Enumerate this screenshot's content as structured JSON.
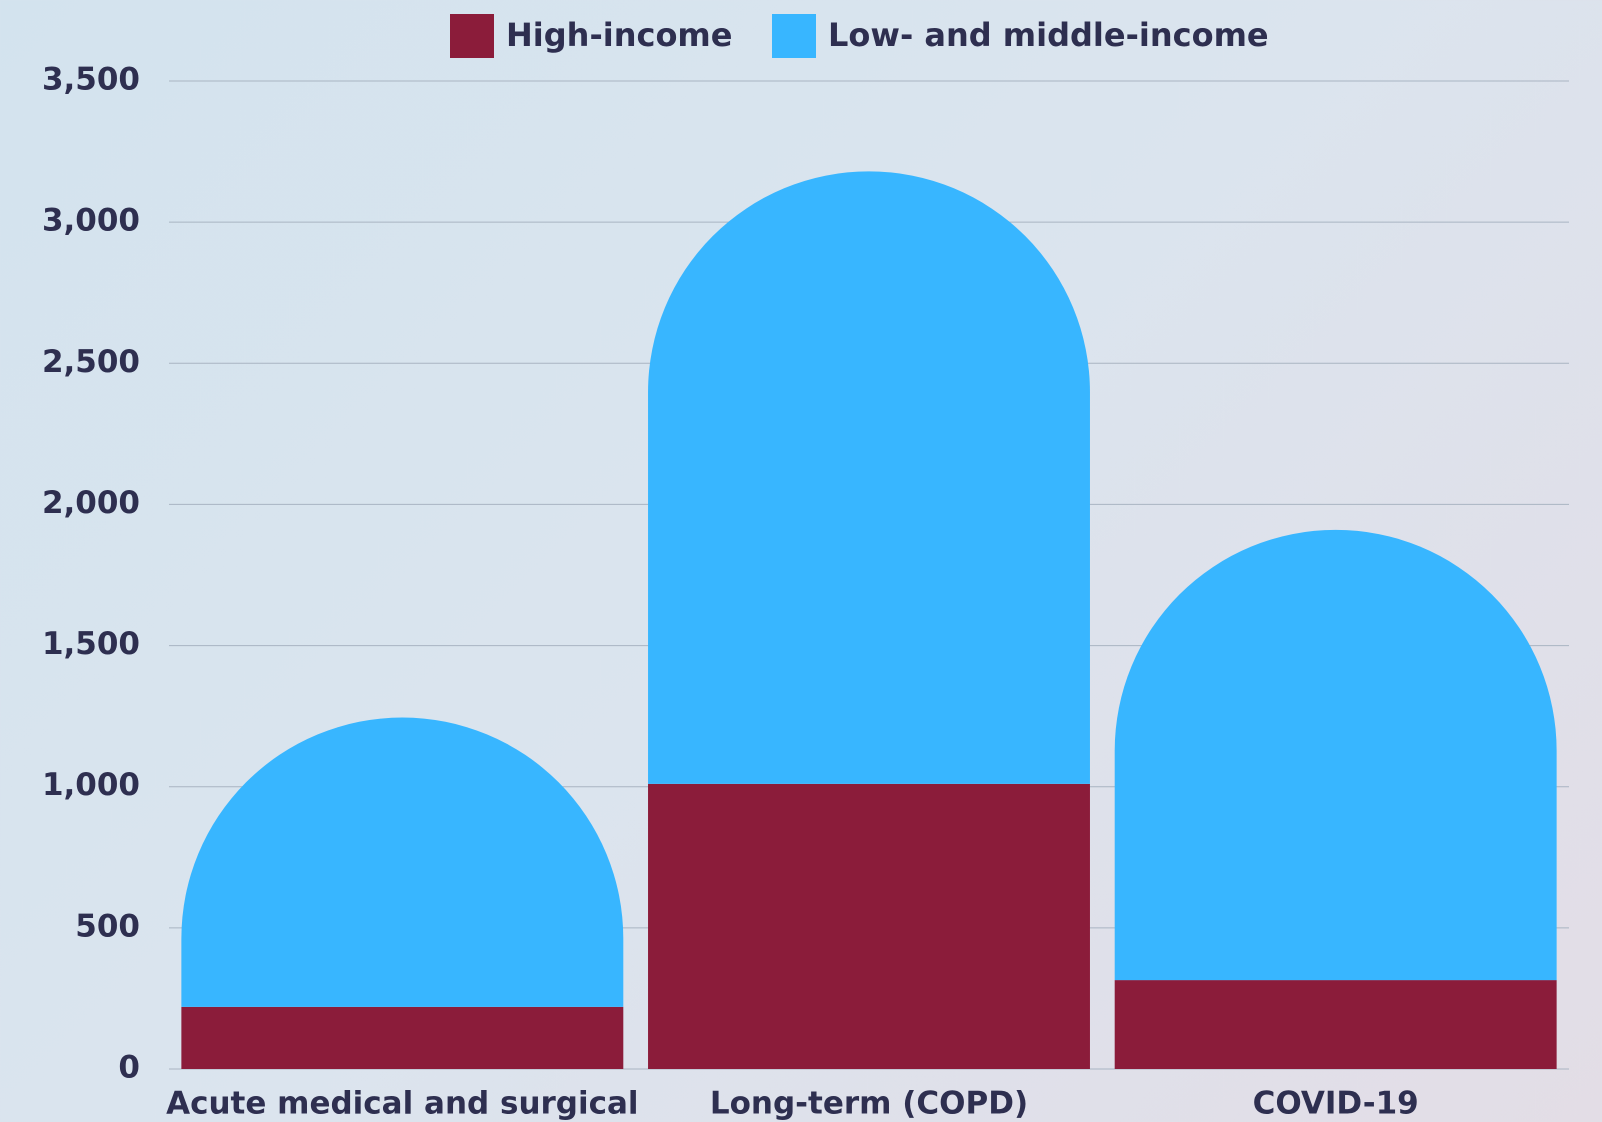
{
  "chart_data": {
    "type": "bar",
    "stacked": true,
    "categories": [
      "Acute medical and surgical",
      "Long-term (COPD)",
      "COVID-19"
    ],
    "series": [
      {
        "name": "High-income",
        "color": "#8b1c3a",
        "values": [
          220,
          1010,
          315
        ]
      },
      {
        "name": "Low- and middle-income",
        "color": "#38b6ff",
        "values": [
          1025,
          2170,
          1595
        ]
      }
    ],
    "ylim": [
      0,
      3500
    ],
    "yticks": [
      0,
      {
        "value": 500,
        "label": "500"
      },
      {
        "value": 1000,
        "label": "1,000"
      },
      {
        "value": 1500,
        "label": "1,500"
      },
      {
        "value": 2000,
        "label": "2,000"
      },
      {
        "value": 2500,
        "label": "2,500"
      },
      {
        "value": 3000,
        "label": "3,000"
      },
      {
        "value": 3500,
        "label": "3,500"
      }
    ],
    "grid": true
  }
}
